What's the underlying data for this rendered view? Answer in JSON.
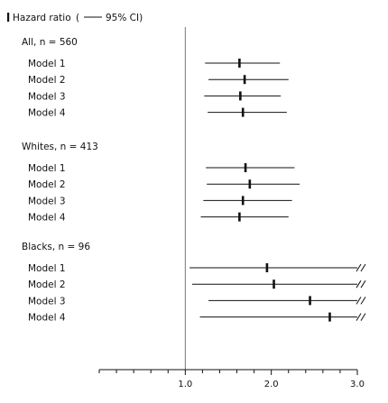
{
  "legend": {
    "marker_label": "Hazard ratio",
    "ci_label": "95% CI)",
    "open_paren": "("
  },
  "chart_data": {
    "type": "forest",
    "xlim": [
      0,
      3.0
    ],
    "reference_line": 1.0,
    "x_tick_labels": [
      "1.0",
      "2.0",
      "3.0"
    ],
    "x_tick_values": [
      1.0,
      2.0,
      3.0
    ],
    "minor_ticks": [
      0.2,
      0.4,
      0.6,
      0.8,
      1.2,
      1.4,
      1.6,
      1.8,
      2.2,
      2.4,
      2.6,
      2.8
    ],
    "groups": [
      {
        "label": "All, n = 560",
        "rows": [
          {
            "label": "Model 1",
            "hr": 1.63,
            "lo": 1.23,
            "hi": 2.1
          },
          {
            "label": "Model 2",
            "hr": 1.69,
            "lo": 1.27,
            "hi": 2.2
          },
          {
            "label": "Model 3",
            "hr": 1.64,
            "lo": 1.22,
            "hi": 2.11
          },
          {
            "label": "Model 4",
            "hr": 1.67,
            "lo": 1.26,
            "hi": 2.18
          }
        ]
      },
      {
        "label": "Whites, n = 413",
        "rows": [
          {
            "label": "Model 1",
            "hr": 1.7,
            "lo": 1.24,
            "hi": 2.27
          },
          {
            "label": "Model 2",
            "hr": 1.75,
            "lo": 1.25,
            "hi": 2.33
          },
          {
            "label": "Model 3",
            "hr": 1.67,
            "lo": 1.21,
            "hi": 2.24
          },
          {
            "label": "Model 4",
            "hr": 1.63,
            "lo": 1.18,
            "hi": 2.2
          }
        ]
      },
      {
        "label": "Blacks, n = 96",
        "rows": [
          {
            "label": "Model 1",
            "hr": 1.95,
            "lo": 1.05,
            "hi": 3.0,
            "truncated": true
          },
          {
            "label": "Model 2",
            "hr": 2.03,
            "lo": 1.08,
            "hi": 3.0,
            "truncated": true
          },
          {
            "label": "Model 3",
            "hr": 2.45,
            "lo": 1.27,
            "hi": 3.0,
            "truncated": true
          },
          {
            "label": "Model 4",
            "hr": 2.68,
            "lo": 1.17,
            "hi": 3.0,
            "truncated": true
          }
        ]
      }
    ]
  }
}
